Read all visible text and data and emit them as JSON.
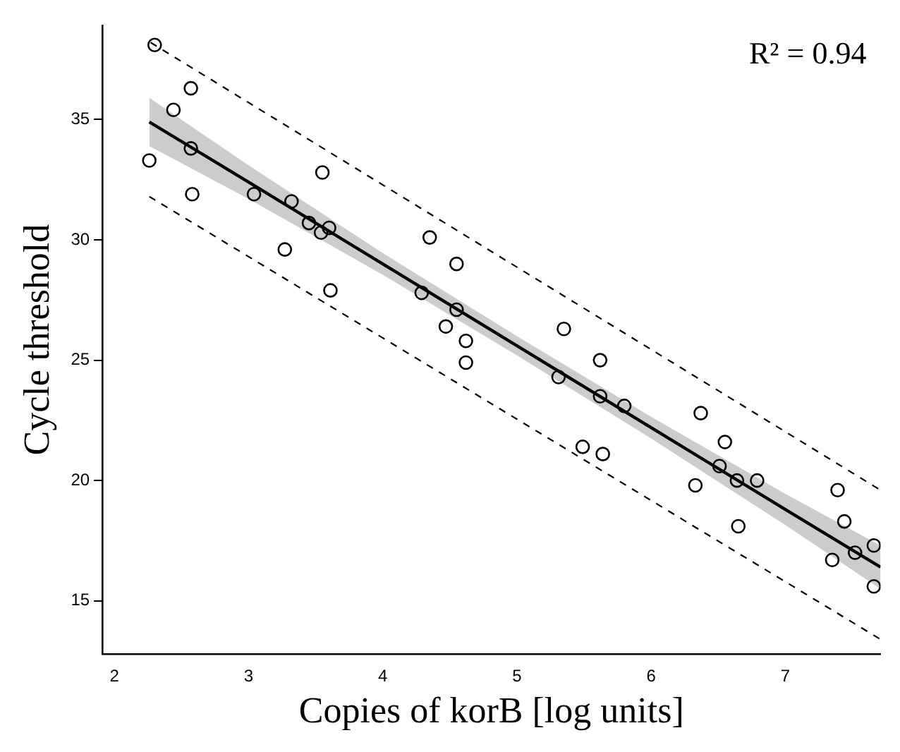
{
  "chart_data": {
    "type": "scatter",
    "xlabel": "Copies of korB [log units]",
    "ylabel": "Cycle threshold",
    "annotations": [
      "R² = 0.94"
    ],
    "xlim": [
      1.91,
      7.71
    ],
    "ylim": [
      12.8,
      38.9
    ],
    "xticks": [
      2,
      3,
      4,
      5,
      6,
      7
    ],
    "yticks": [
      15,
      20,
      25,
      30,
      35
    ],
    "grid": false,
    "legend": false,
    "series": [
      {
        "type": "scatter",
        "marker": "circle",
        "color": "#000000",
        "x": [
          2.3,
          2.44,
          2.57,
          2.57,
          2.26,
          2.58,
          3.04,
          3.32,
          3.45,
          3.54,
          3.6,
          3.55,
          3.27,
          3.61,
          4.35,
          4.55,
          4.29,
          4.55,
          4.47,
          4.62,
          4.62,
          5.35,
          5.62,
          5.31,
          5.62,
          5.8,
          5.49,
          5.64,
          6.37,
          6.55,
          6.51,
          6.64,
          6.79,
          6.33,
          6.65,
          7.39,
          7.44,
          7.35,
          7.52,
          7.66,
          7.66
        ],
        "values": [
          38.1,
          35.4,
          36.3,
          33.8,
          33.3,
          31.9,
          31.9,
          31.6,
          30.7,
          30.3,
          30.5,
          32.8,
          29.6,
          27.9,
          30.1,
          29.0,
          27.8,
          27.1,
          26.4,
          25.8,
          24.9,
          26.3,
          25.0,
          24.3,
          23.5,
          23.1,
          21.4,
          21.1,
          22.8,
          21.6,
          20.6,
          20.0,
          20.0,
          19.8,
          18.1,
          19.6,
          18.3,
          16.7,
          17.0,
          17.3,
          15.6
        ]
      },
      {
        "type": "line",
        "marker": "none",
        "line_style": "solid",
        "color": "#000000",
        "x": [
          2.26,
          3,
          4,
          5,
          6,
          7,
          7.71
        ],
        "values": [
          34.9,
          32.4,
          29.0,
          25.6,
          22.2,
          18.8,
          16.4
        ],
        "lower": [
          33.9,
          31.7,
          28.55,
          25.2,
          21.75,
          18.15,
          15.5
        ],
        "upper": [
          35.9,
          33.1,
          29.45,
          26.0,
          22.65,
          19.45,
          17.3
        ]
      },
      {
        "type": "line",
        "marker": "none",
        "line_style": "dashed",
        "color": "#000000",
        "x": [
          2.27,
          7.71
        ],
        "values": [
          38.2,
          19.6
        ]
      },
      {
        "type": "line",
        "marker": "none",
        "line_style": "dashed",
        "color": "#000000",
        "x": [
          2.26,
          7.71
        ],
        "values": [
          31.8,
          13.4
        ]
      }
    ]
  }
}
